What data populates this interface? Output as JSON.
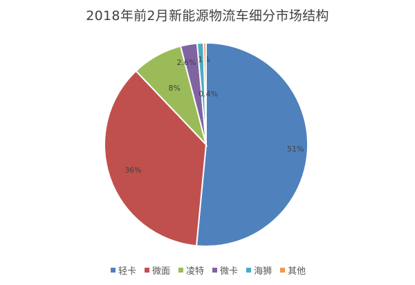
{
  "chart_data": {
    "type": "pie",
    "title": "2018年前2月新能源物流车细分市场结构",
    "labels": [
      "轻卡",
      "微面",
      "凌特",
      "微卡",
      "海狮",
      "其他"
    ],
    "values": [
      51,
      36,
      8,
      2.6,
      1,
      0.4
    ],
    "data_labels": [
      "51%",
      "36%",
      "8%",
      "2.6%",
      "1%",
      "0.4%"
    ],
    "colors": [
      "#4f81bd",
      "#c0504d",
      "#9bbb59",
      "#8064a2",
      "#4bacc6",
      "#f79646"
    ],
    "start": "12 o'clock",
    "direction": "clockwise",
    "legend_placement": "bottom"
  }
}
